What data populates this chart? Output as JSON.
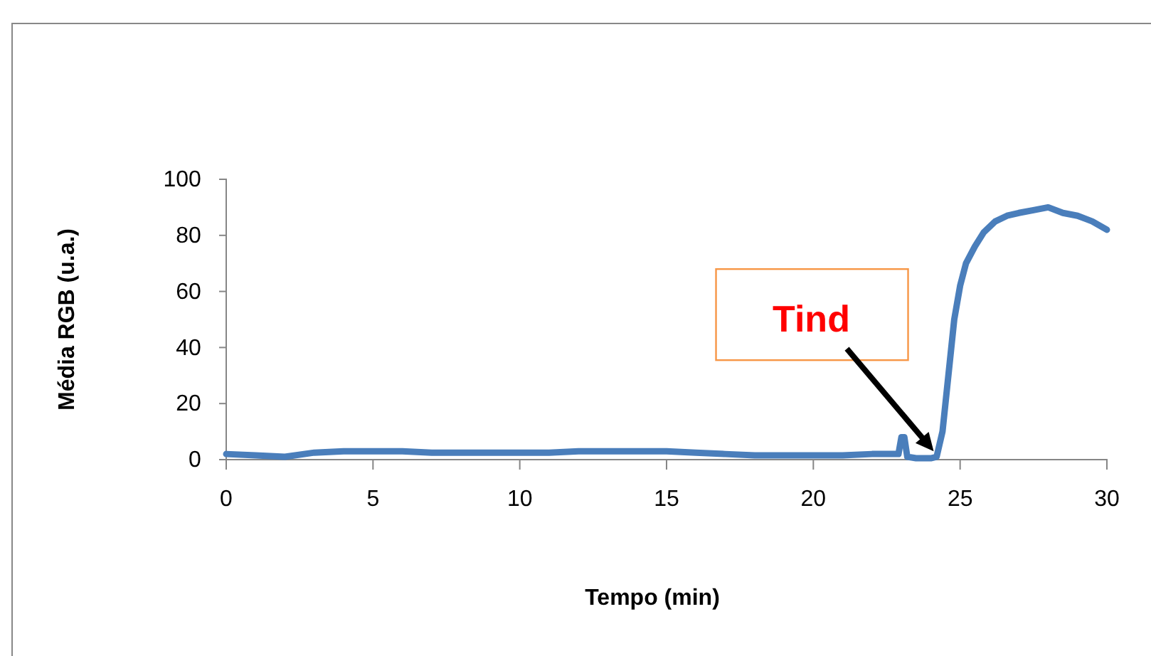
{
  "chart_data": {
    "type": "line",
    "xlabel": "Tempo (min)",
    "ylabel": "Média RGB  (u.a.)",
    "x": [
      0,
      1,
      2,
      3,
      4,
      5,
      6,
      7,
      8,
      9,
      10,
      11,
      12,
      13,
      14,
      15,
      16,
      17,
      18,
      19,
      20,
      21,
      22,
      22.9,
      23.0,
      23.1,
      23.2,
      23.5,
      24.0,
      24.2,
      24.4,
      24.6,
      24.8,
      25.0,
      25.2,
      25.5,
      25.8,
      26.2,
      26.6,
      27.0,
      27.5,
      28.0,
      28.5,
      29.0,
      29.5,
      30
    ],
    "series": [
      {
        "color": "#4a7ebb",
        "values": [
          2,
          1.5,
          1,
          2.5,
          3,
          3,
          3,
          2.5,
          2.5,
          2.5,
          2.5,
          2.5,
          3,
          3,
          3,
          3,
          2.5,
          2,
          1.5,
          1.5,
          1.5,
          1.5,
          2,
          2,
          8,
          8,
          1,
          0.5,
          0.5,
          1,
          10,
          30,
          50,
          62,
          70,
          76,
          81,
          85,
          87,
          88,
          89,
          90,
          88,
          87,
          85,
          82
        ]
      }
    ],
    "xlim": [
      0,
      30
    ],
    "xticks": [
      0,
      5,
      10,
      15,
      20,
      25,
      30
    ],
    "ylim": [
      0,
      100
    ],
    "yticks": [
      0,
      20,
      40,
      60,
      80,
      100
    ],
    "grid": false,
    "marker": "none",
    "line_style": "solid",
    "annotations": [
      {
        "text": "Tind",
        "x": 24.1,
        "y": 3
      }
    ]
  }
}
